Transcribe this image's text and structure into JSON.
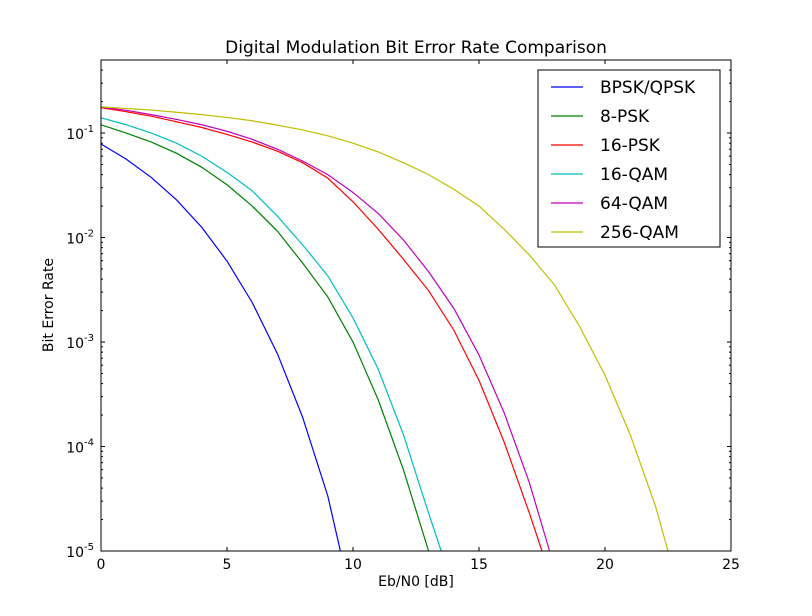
{
  "chart_data": {
    "type": "line",
    "title": "Digital Modulation Bit Error Rate Comparison",
    "xlabel": "Eb/N0 [dB]",
    "ylabel": "Bit Error Rate",
    "xlim": [
      0,
      25
    ],
    "ylim": [
      1e-05,
      0.5
    ],
    "yscale": "log",
    "grid": false,
    "legend_position": "top-right",
    "x_ticks": [
      0,
      5,
      10,
      15,
      20,
      25
    ],
    "x_tick_labels": [
      "0",
      "5",
      "10",
      "15",
      "20",
      "25"
    ],
    "y_ticks": [
      1e-05,
      0.0001,
      0.001,
      0.01,
      0.1
    ],
    "y_tick_labels": [
      {
        "base": "10",
        "exp": "-5"
      },
      {
        "base": "10",
        "exp": "-4"
      },
      {
        "base": "10",
        "exp": "-3"
      },
      {
        "base": "10",
        "exp": "-2"
      },
      {
        "base": "10",
        "exp": "-1"
      }
    ],
    "series": [
      {
        "name": "BPSK/QPSK",
        "color": "#0000ff",
        "x": [
          0,
          1,
          2,
          3,
          4,
          5,
          6,
          7,
          8,
          9,
          9.5
        ],
        "values": [
          0.0786,
          0.0563,
          0.0375,
          0.0229,
          0.0125,
          0.00595,
          0.00239,
          0.000773,
          0.000191,
          3.36e-05,
          1e-05
        ]
      },
      {
        "name": "8-PSK",
        "color": "#008000",
        "x": [
          0,
          1,
          2,
          3,
          4,
          5,
          6,
          7,
          8,
          9,
          10,
          11,
          12,
          13
        ],
        "values": [
          0.12,
          0.1,
          0.082,
          0.064,
          0.047,
          0.032,
          0.02,
          0.0115,
          0.0057,
          0.0027,
          0.001,
          0.00028,
          6e-05,
          1e-05
        ]
      },
      {
        "name": "16-PSK",
        "color": "#ff0000",
        "x": [
          0,
          1,
          2,
          3,
          4,
          5,
          6,
          7,
          8,
          9,
          10,
          11,
          12,
          13,
          14,
          15,
          16,
          17,
          17.5
        ],
        "values": [
          0.175,
          0.16,
          0.145,
          0.128,
          0.113,
          0.097,
          0.082,
          0.067,
          0.052,
          0.037,
          0.022,
          0.012,
          0.0062,
          0.0031,
          0.0013,
          0.00043,
          0.00011,
          2.3e-05,
          1e-05
        ]
      },
      {
        "name": "16-QAM",
        "color": "#00bfbf",
        "x": [
          0,
          1,
          2,
          3,
          4,
          5,
          6,
          7,
          8,
          9,
          10,
          11,
          12,
          13,
          13.5
        ],
        "values": [
          0.14,
          0.12,
          0.1,
          0.08,
          0.06,
          0.042,
          0.028,
          0.016,
          0.0085,
          0.0043,
          0.0017,
          0.00055,
          0.00013,
          2.3e-05,
          1e-05
        ]
      },
      {
        "name": "64-QAM",
        "color": "#bf00bf",
        "x": [
          0,
          1,
          2,
          3,
          4,
          5,
          6,
          7,
          8,
          9,
          10,
          11,
          12,
          13,
          14,
          15,
          16,
          17,
          17.8
        ],
        "values": [
          0.178,
          0.165,
          0.15,
          0.135,
          0.12,
          0.104,
          0.087,
          0.07,
          0.054,
          0.04,
          0.027,
          0.017,
          0.0095,
          0.0047,
          0.0021,
          0.00075,
          0.00021,
          4.5e-05,
          1e-05
        ]
      },
      {
        "name": "256-QAM",
        "color": "#bfbf00",
        "x": [
          0,
          1,
          2,
          3,
          4,
          5,
          6,
          7,
          8,
          9,
          10,
          11,
          12,
          13,
          14,
          15,
          16,
          17,
          18,
          19,
          20,
          21,
          22,
          22.5
        ],
        "values": [
          0.178,
          0.172,
          0.166,
          0.158,
          0.15,
          0.141,
          0.131,
          0.119,
          0.107,
          0.094,
          0.08,
          0.066,
          0.052,
          0.04,
          0.029,
          0.02,
          0.012,
          0.0068,
          0.0035,
          0.0014,
          0.00048,
          0.00013,
          2.7e-05,
          1e-05
        ]
      }
    ]
  }
}
